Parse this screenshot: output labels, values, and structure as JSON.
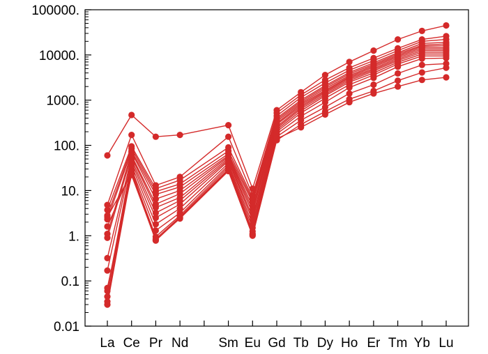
{
  "chart_data": {
    "type": "line",
    "title": "",
    "xlabel": "",
    "ylabel": "",
    "y_scale": "log",
    "ylim": [
      0.01,
      100000
    ],
    "grid": false,
    "legend": "none",
    "series_color": "#d42a2a",
    "x_labels": [
      "La",
      "Ce",
      "Pr",
      "Nd",
      "",
      "Sm",
      "Eu",
      "Gd",
      "Tb",
      "Dy",
      "Ho",
      "Er",
      "Tm",
      "Yb",
      "Lu"
    ],
    "y_tick_labels": [
      "0.01",
      "0.1",
      "1.",
      "10.",
      "100.",
      "1000.",
      "10000.",
      "100000."
    ],
    "series": [
      {
        "values": [
          60,
          470,
          155,
          170,
          null,
          280,
          11,
          600,
          1500,
          3600,
          7000,
          12500,
          22000,
          34000,
          45000
        ]
      },
      {
        "values": [
          4.8,
          170,
          13,
          20,
          null,
          155,
          8,
          520,
          1300,
          2800,
          5200,
          8500,
          14000,
          22000,
          26000
        ]
      },
      {
        "values": [
          3.7,
          95,
          11,
          17,
          null,
          90,
          7,
          450,
          1150,
          2400,
          4600,
          7500,
          12500,
          20000,
          22000
        ]
      },
      {
        "values": [
          2.8,
          85,
          9.5,
          14,
          null,
          75,
          6.2,
          400,
          1000,
          2100,
          4100,
          6700,
          11200,
          18000,
          19000
        ]
      },
      {
        "values": [
          2.3,
          75,
          8.2,
          12,
          null,
          65,
          5.5,
          370,
          930,
          1950,
          3800,
          6200,
          10500,
          16500,
          17500
        ]
      },
      {
        "values": [
          1.1,
          70,
          6.5,
          10,
          null,
          60,
          4.5,
          340,
          860,
          1800,
          3500,
          5800,
          9800,
          15500,
          16000
        ]
      },
      {
        "values": [
          0.9,
          60,
          5,
          8.5,
          null,
          56,
          3.8,
          310,
          800,
          1650,
          3300,
          5400,
          9200,
          14500,
          14500
        ]
      },
      {
        "values": [
          0.32,
          55,
          4.2,
          7,
          null,
          52,
          3.2,
          290,
          740,
          1550,
          3100,
          5000,
          8600,
          13500,
          13500
        ]
      },
      {
        "values": [
          0.17,
          48,
          3.2,
          6,
          null,
          48,
          2.6,
          260,
          690,
          1450,
          2900,
          4700,
          8000,
          12500,
          12500
        ]
      },
      {
        "values": [
          0.06,
          42,
          2.5,
          5,
          null,
          45,
          2.2,
          240,
          640,
          1350,
          2700,
          4400,
          7500,
          11500,
          11500
        ]
      },
      {
        "values": [
          0.045,
          36,
          1.8,
          4,
          null,
          40,
          1.8,
          220,
          580,
          1250,
          2500,
          4000,
          6900,
          10500,
          10500
        ]
      },
      {
        "values": [
          0.035,
          30,
          1.3,
          3.2,
          null,
          36,
          1.5,
          200,
          520,
          1100,
          2200,
          3600,
          6300,
          9500,
          9500
        ]
      },
      {
        "values": [
          0.03,
          26,
          0.95,
          2.8,
          null,
          33,
          1.25,
          180,
          440,
          900,
          1900,
          3100,
          5500,
          8300,
          8500
        ]
      },
      {
        "values": [
          1.6,
          28,
          0.85,
          2.6,
          null,
          30,
          1.1,
          155,
          360,
          700,
          1400,
          2200,
          3900,
          6000,
          6400
        ]
      },
      {
        "values": [
          2.6,
          24,
          0.78,
          2.5,
          null,
          28,
          1.05,
          140,
          250,
          480,
          900,
          1400,
          2000,
          2800,
          3200
        ]
      },
      {
        "values": [
          0.07,
          22,
          0.8,
          2.4,
          null,
          27,
          1.0,
          130,
          290,
          560,
          1050,
          1600,
          2700,
          4100,
          5200
        ]
      }
    ]
  }
}
